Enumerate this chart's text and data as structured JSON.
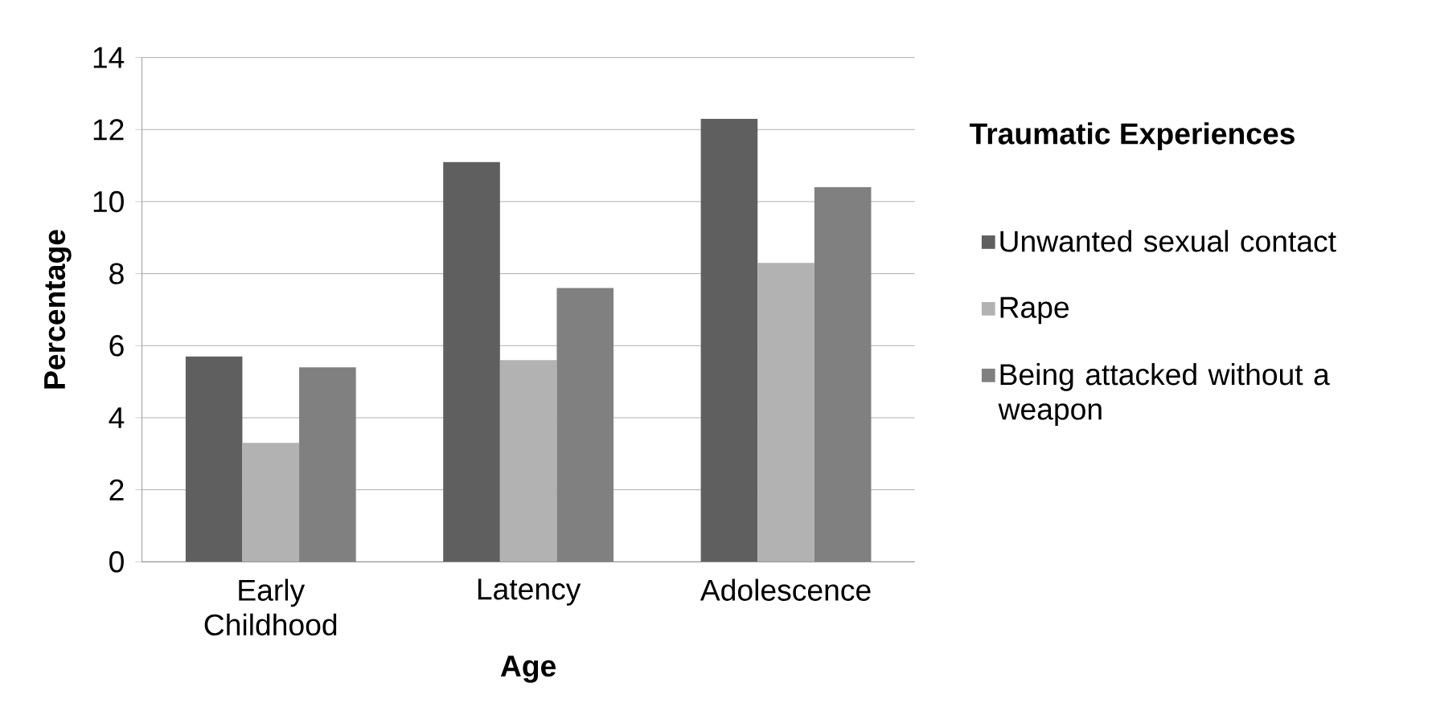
{
  "chart_data": {
    "type": "bar",
    "xlabel": "Age",
    "ylabel": "Percentage",
    "legend_title": "Traumatic Experiences",
    "categories": [
      "Early Childhood",
      "Latency",
      "Adolescence"
    ],
    "series": [
      {
        "name": "Unwanted sexual contact",
        "color": "#5f5f5f",
        "values": [
          5.7,
          11.1,
          12.3
        ]
      },
      {
        "name": "Rape",
        "color": "#b2b2b2",
        "values": [
          3.3,
          5.6,
          8.3
        ]
      },
      {
        "name": "Being attacked without a weapon",
        "color": "#808080",
        "values": [
          5.4,
          7.6,
          10.4
        ]
      }
    ],
    "ylim": [
      0,
      14
    ],
    "yticks": [
      0,
      2,
      4,
      6,
      8,
      10,
      12,
      14
    ],
    "grid": "y",
    "legend": "right"
  }
}
